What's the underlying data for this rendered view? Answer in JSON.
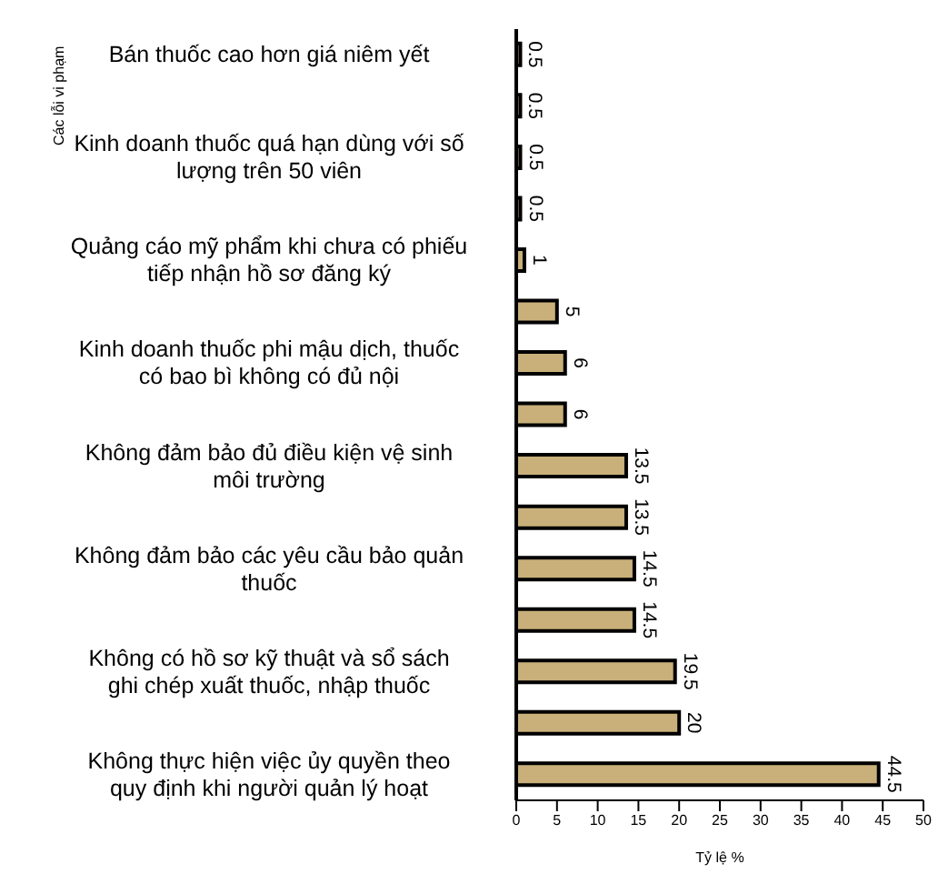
{
  "chart_data": {
    "type": "bar",
    "orientation": "horizontal",
    "categories": [
      "Bán thuốc cao hơn giá niêm yết",
      null,
      "Kinh doanh thuốc quá hạn dùng với số lượng trên 50 viên",
      null,
      "Quảng cáo mỹ phẩm khi chưa có phiếu tiếp nhận hồ sơ đăng ký",
      null,
      "Kinh doanh thuốc phi mậu dịch, thuốc có bao bì không có đủ nội",
      null,
      "Không đảm bảo đủ điều kiện vệ sinh môi trường",
      null,
      "Không đảm bảo các yêu cầu bảo quản thuốc",
      null,
      "Không có hồ sơ kỹ thuật và sổ sách ghi chép xuất thuốc, nhập thuốc",
      null,
      "Không thực hiện việc ủy quyền theo quy định khi người quản lý hoạt"
    ],
    "values": [
      0.5,
      0.5,
      0.5,
      0.5,
      1,
      5,
      6,
      6,
      13.5,
      13.5,
      14.5,
      14.5,
      19.5,
      20,
      44.5
    ],
    "color": "#c9b07a",
    "xlim": [
      0,
      50
    ],
    "xticks": [
      0,
      5,
      10,
      15,
      20,
      25,
      30,
      35,
      40,
      45,
      50
    ],
    "xlabel": "Tỷ lệ %",
    "ylabel": "Các lỗi vi phạm",
    "data_labels": true
  }
}
